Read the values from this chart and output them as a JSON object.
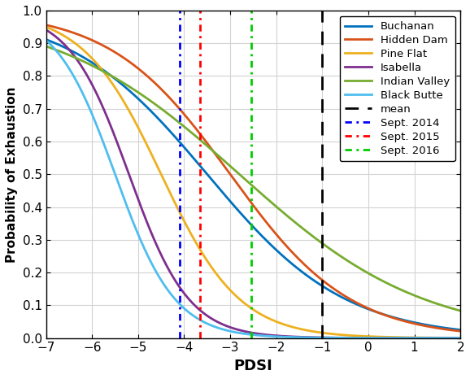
{
  "curves": [
    {
      "name": "Buchanan",
      "color": "#0072BD",
      "mu": -3.5,
      "sigma": 1.5
    },
    {
      "name": "Hidden Dam",
      "color": "#D95319",
      "mu": -3.0,
      "sigma": 1.3
    },
    {
      "name": "Pine Flat",
      "color": "#EDB120",
      "mu": -4.5,
      "sigma": 0.85
    },
    {
      "name": "Isabella",
      "color": "#7E2F8E",
      "mu": -5.2,
      "sigma": 0.65
    },
    {
      "name": "Indian Valley",
      "color": "#77AC30",
      "mu": -2.8,
      "sigma": 2.0
    },
    {
      "name": "Black Butte",
      "color": "#4DBEEE",
      "mu": -5.5,
      "sigma": 0.65
    }
  ],
  "vlines": [
    {
      "x": -4.1,
      "color": "#0000FF",
      "linestyle": "--",
      "label": "Sept. 2014"
    },
    {
      "x": -3.65,
      "color": "#FF0000",
      "linestyle": "--",
      "label": "Sept. 2015"
    },
    {
      "x": -2.55,
      "color": "#00CC00",
      "linestyle": "--",
      "label": "Sept. 2016"
    },
    {
      "x": -1.0,
      "color": "#000000",
      "linestyle": "--",
      "label": "mean"
    }
  ],
  "xlim": [
    -7,
    2
  ],
  "ylim": [
    0,
    1.0
  ],
  "xlabel": "PDSI",
  "ylabel": "Probability of Exhaustion",
  "xticks": [
    -7,
    -6,
    -5,
    -4,
    -3,
    -2,
    -1,
    0,
    1,
    2
  ],
  "yticks": [
    0,
    0.1,
    0.2,
    0.3,
    0.4,
    0.5,
    0.6,
    0.7,
    0.8,
    0.9,
    1.0
  ],
  "figsize": [
    5.78,
    4.66
  ],
  "dpi": 100
}
